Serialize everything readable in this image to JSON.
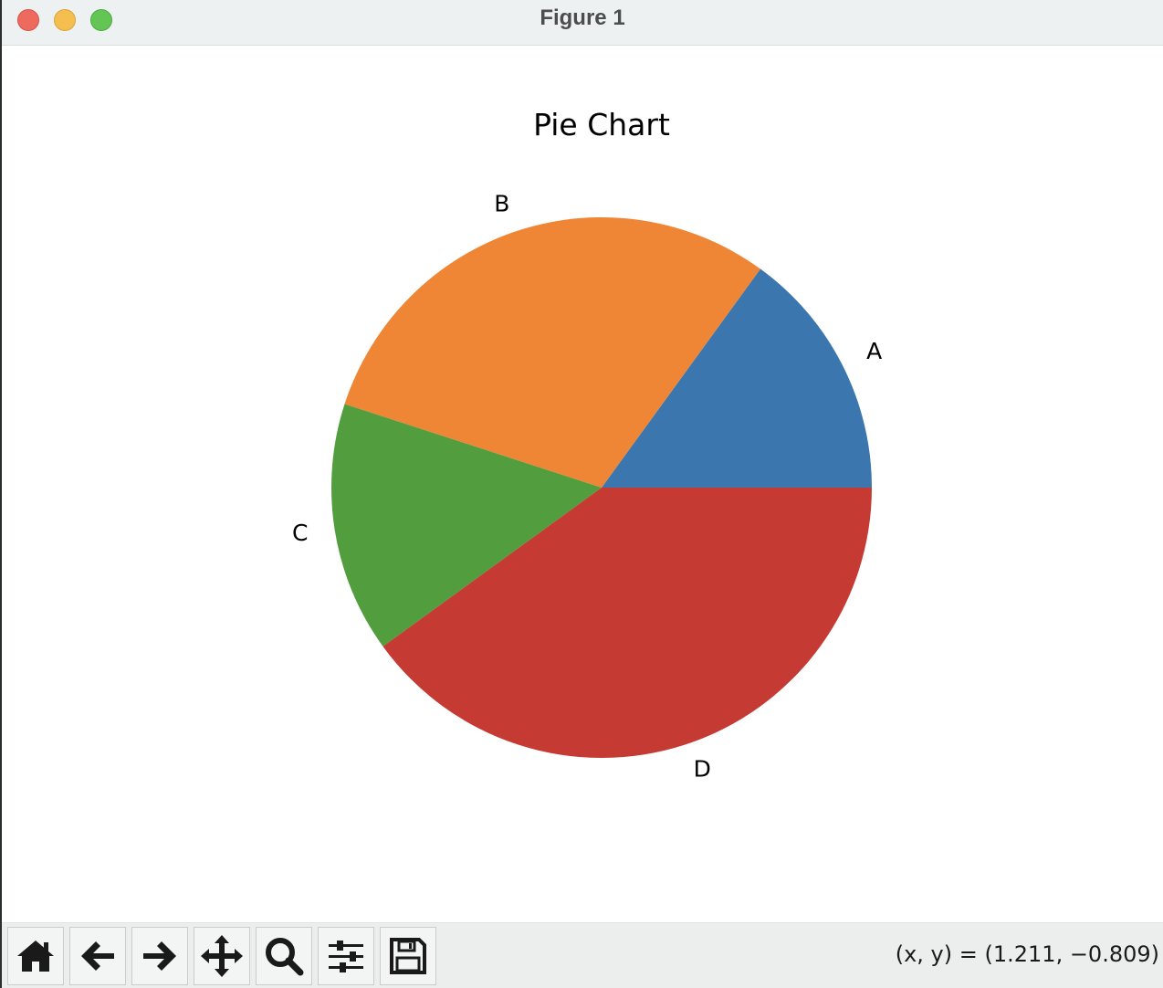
{
  "window": {
    "title": "Figure 1"
  },
  "toolbar": {
    "buttons": [
      {
        "name": "home-button",
        "icon": "home-icon"
      },
      {
        "name": "back-button",
        "icon": "arrow-left-icon"
      },
      {
        "name": "forward-button",
        "icon": "arrow-right-icon"
      },
      {
        "name": "pan-button",
        "icon": "move-icon"
      },
      {
        "name": "zoom-button",
        "icon": "search-icon"
      },
      {
        "name": "configure-subplots-button",
        "icon": "sliders-icon"
      },
      {
        "name": "save-button",
        "icon": "floppy-disk-icon"
      }
    ],
    "coordinates": "(x, y) = (1.211, −0.809)"
  },
  "chart_data": {
    "type": "pie",
    "title": "Pie Chart",
    "categories": [
      "A",
      "B",
      "C",
      "D"
    ],
    "values": [
      15,
      30,
      15,
      40
    ],
    "colors": [
      "#3b76af",
      "#ef8636",
      "#529e3f",
      "#c53a32"
    ],
    "start_angle_deg": 0,
    "direction": "counterclockwise"
  }
}
